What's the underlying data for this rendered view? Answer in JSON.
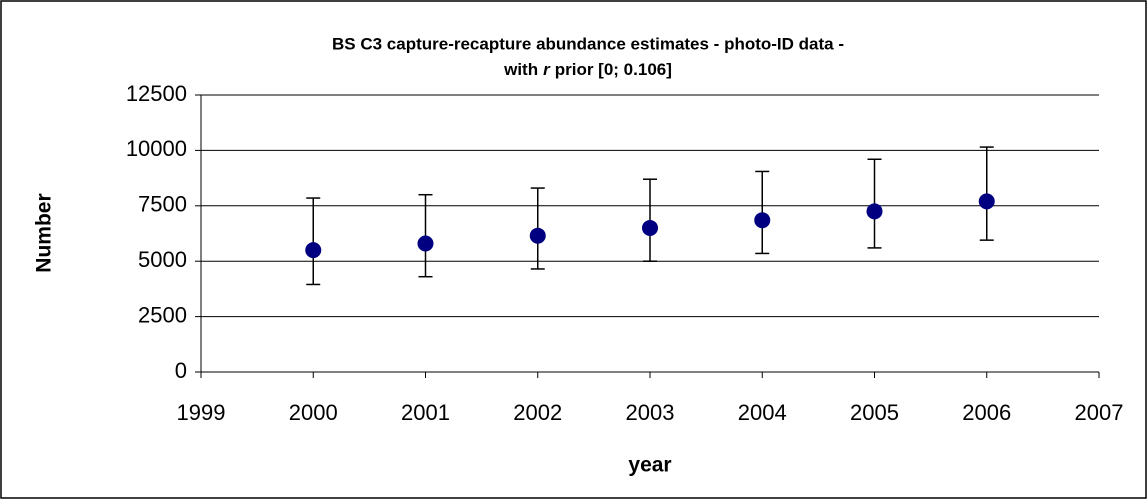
{
  "chart_data": {
    "type": "scatter",
    "title": [
      "BS C3 capture-recapture abundance estimates - photo-ID data -",
      "with",
      "r",
      "prior [0; 0.106]"
    ],
    "x_label": "year",
    "y_label": "Number",
    "x": [
      2000,
      2001,
      2002,
      2003,
      2004,
      2005,
      2006
    ],
    "series": [
      {
        "color": "#000080",
        "values": [
          5500,
          5800,
          6150,
          6500,
          6850,
          7250,
          7700
        ],
        "lower": [
          3950,
          4300,
          4650,
          5000,
          5350,
          5600,
          5950
        ],
        "upper": [
          7850,
          8000,
          8300,
          8700,
          9050,
          9600,
          10150
        ]
      }
    ],
    "xlim": [
      1999,
      2007
    ],
    "xticks": [
      1999,
      2000,
      2001,
      2002,
      2003,
      2004,
      2005,
      2006,
      2007
    ],
    "ylim": [
      0,
      12500
    ],
    "yticks": [
      0,
      2500,
      5000,
      7500,
      10000,
      12500
    ],
    "grid": true
  }
}
